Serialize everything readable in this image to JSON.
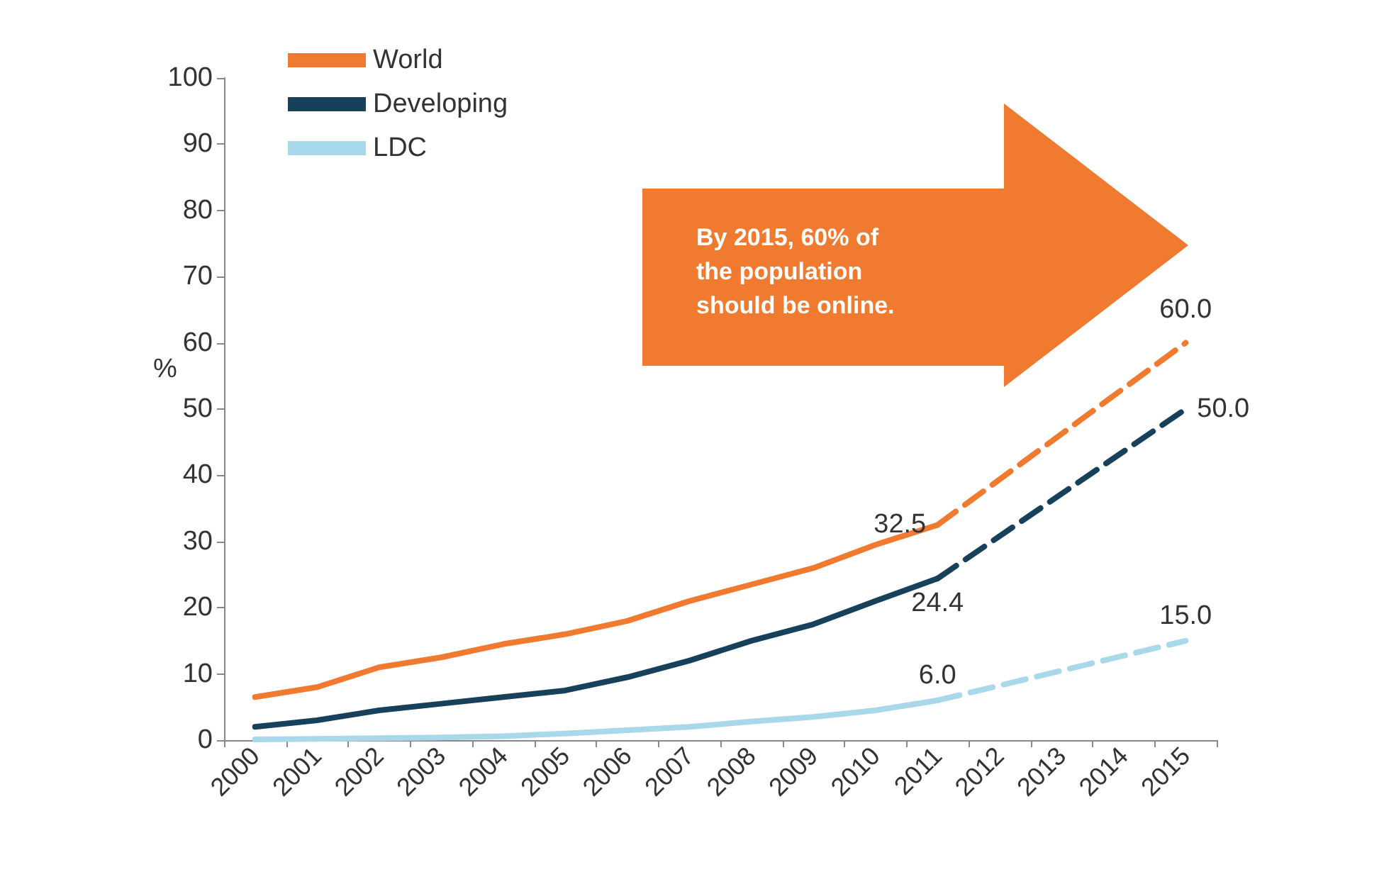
{
  "chart_data": {
    "type": "line",
    "ylabel": "%",
    "categories": [
      "2000",
      "2001",
      "2002",
      "2003",
      "2004",
      "2005",
      "2006",
      "2007",
      "2008",
      "2009",
      "2010",
      "2011",
      "2012",
      "2013",
      "2014",
      "2015"
    ],
    "series": [
      {
        "name": "World",
        "color": "#f07a30",
        "line_style": "solid",
        "values": [
          6.5,
          8,
          11,
          12.5,
          14.5,
          16,
          18,
          21,
          23.5,
          26,
          29.5,
          32.5,
          null,
          null,
          null,
          null
        ]
      },
      {
        "name": "Developing",
        "color": "#17405a",
        "line_style": "solid",
        "values": [
          2,
          3,
          4.5,
          5.5,
          6.5,
          7.5,
          9.5,
          12,
          15,
          17.5,
          21,
          24.4,
          null,
          null,
          null,
          null
        ]
      },
      {
        "name": "LDC",
        "color": "#a8d8ea",
        "line_style": "solid",
        "values": [
          0.1,
          0.2,
          0.3,
          0.4,
          0.6,
          1,
          1.5,
          2,
          2.8,
          3.5,
          4.5,
          6.0,
          null,
          null,
          null,
          null
        ]
      },
      {
        "color": "#f07a30",
        "line_style": "dashed",
        "values": [
          null,
          null,
          null,
          null,
          null,
          null,
          null,
          null,
          null,
          null,
          null,
          32.5,
          null,
          null,
          null,
          60.0
        ],
        "value_labels": [
          null,
          null,
          null,
          null,
          null,
          null,
          null,
          null,
          null,
          null,
          null,
          "32.5",
          null,
          null,
          null,
          "60.0"
        ]
      },
      {
        "color": "#17405a",
        "line_style": "dashed",
        "values": [
          null,
          null,
          null,
          null,
          null,
          null,
          null,
          null,
          null,
          null,
          null,
          24.4,
          null,
          null,
          null,
          50.0
        ],
        "value_labels": [
          null,
          null,
          null,
          null,
          null,
          null,
          null,
          null,
          null,
          null,
          null,
          "24.4",
          null,
          null,
          null,
          "50.0"
        ]
      },
      {
        "color": "#a8d8ea",
        "line_style": "dashed",
        "values": [
          null,
          null,
          null,
          null,
          null,
          null,
          null,
          null,
          null,
          null,
          null,
          6.0,
          null,
          null,
          null,
          15.0
        ],
        "value_labels": [
          null,
          null,
          null,
          null,
          null,
          null,
          null,
          null,
          null,
          null,
          null,
          "6.0",
          null,
          null,
          null,
          "15.0"
        ]
      }
    ],
    "ylim": [
      0,
      100
    ],
    "yticks": [
      0,
      10,
      20,
      30,
      40,
      50,
      60,
      70,
      80,
      90,
      100
    ],
    "grid": false,
    "legend": "top left",
    "marker": "none",
    "annotations": [
      "By 2015, 60% of the population should be online."
    ]
  }
}
